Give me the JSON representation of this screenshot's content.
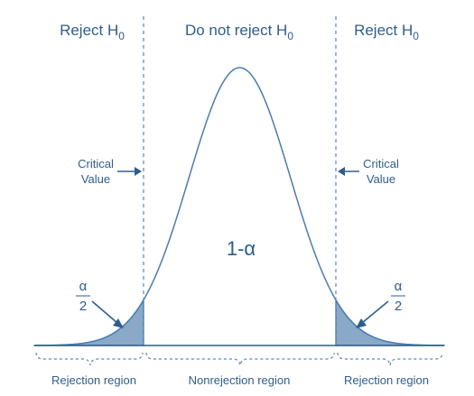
{
  "labels": {
    "reject_left": "Reject H",
    "reject_left_sub": "0",
    "do_not_reject": "Do not reject H",
    "do_not_reject_sub": "0",
    "reject_right": "Reject H",
    "reject_right_sub": "0",
    "critical_left_line1": "Critical",
    "critical_left_line2": "Value",
    "critical_right_line1": "Critical",
    "critical_right_line2": "Value",
    "center_value": "1-α",
    "alpha_left_num": "α",
    "alpha_left_den": "2",
    "alpha_right_num": "α",
    "alpha_right_den": "2",
    "rejection_region_left": "Rejection region",
    "nonrejection_region": "Nonrejection region",
    "rejection_region_right": "Rejection region"
  },
  "colors": {
    "text": "#2f5d8a",
    "curve": "#4a7cb0",
    "shade": "#8aa9c9"
  }
}
